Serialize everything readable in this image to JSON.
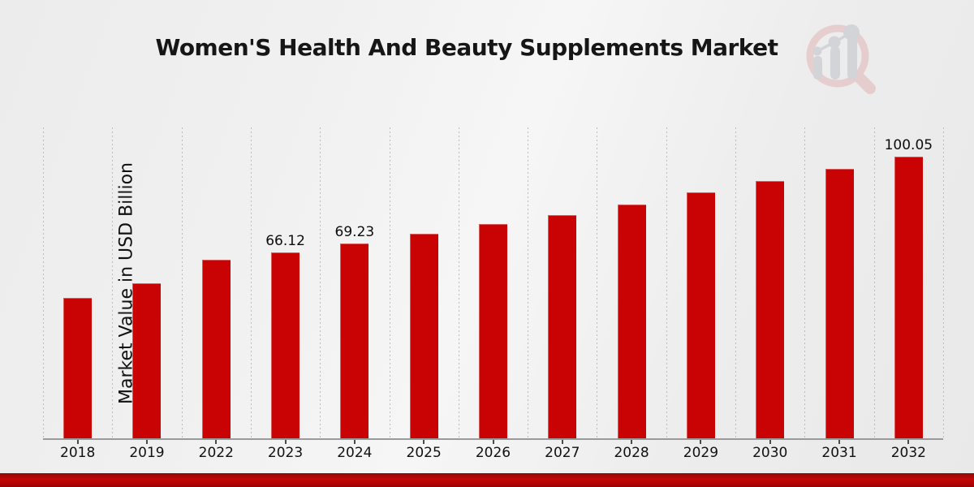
{
  "title": "Women'S Health And Beauty Supplements Market",
  "logo": {
    "name": "magnifier-bar-chart-logo"
  },
  "colors": {
    "bar": "#c90303",
    "footer_band": "#bf0707",
    "grid": "#bcbcbc",
    "axis": "#9a9a9a",
    "text": "#111111",
    "logo_ring": "#e8c2c2",
    "logo_bars": "#c3c5cb"
  },
  "chart_data": {
    "type": "bar",
    "title": "Women'S Health And Beauty Supplements Market",
    "xlabel": "",
    "ylabel": "Market Value in USD Billion",
    "ylim": [
      0,
      110.5
    ],
    "grid": "vertical dashed minor gridlines between categories, no horizontal gridlines, no y tick labels",
    "legend": "none",
    "bar_color": "#c90303",
    "categories": [
      "2018",
      "2019",
      "2022",
      "2023",
      "2024",
      "2025",
      "2026",
      "2027",
      "2028",
      "2029",
      "2030",
      "2031",
      "2032"
    ],
    "values": [
      49.9,
      55.1,
      63.4,
      66.12,
      69.23,
      72.7,
      76.1,
      79.3,
      83.0,
      87.4,
      91.4,
      95.7,
      100.05
    ],
    "value_labels": {
      "2023": "66.12",
      "2024": "69.23",
      "2032": "100.05"
    }
  }
}
